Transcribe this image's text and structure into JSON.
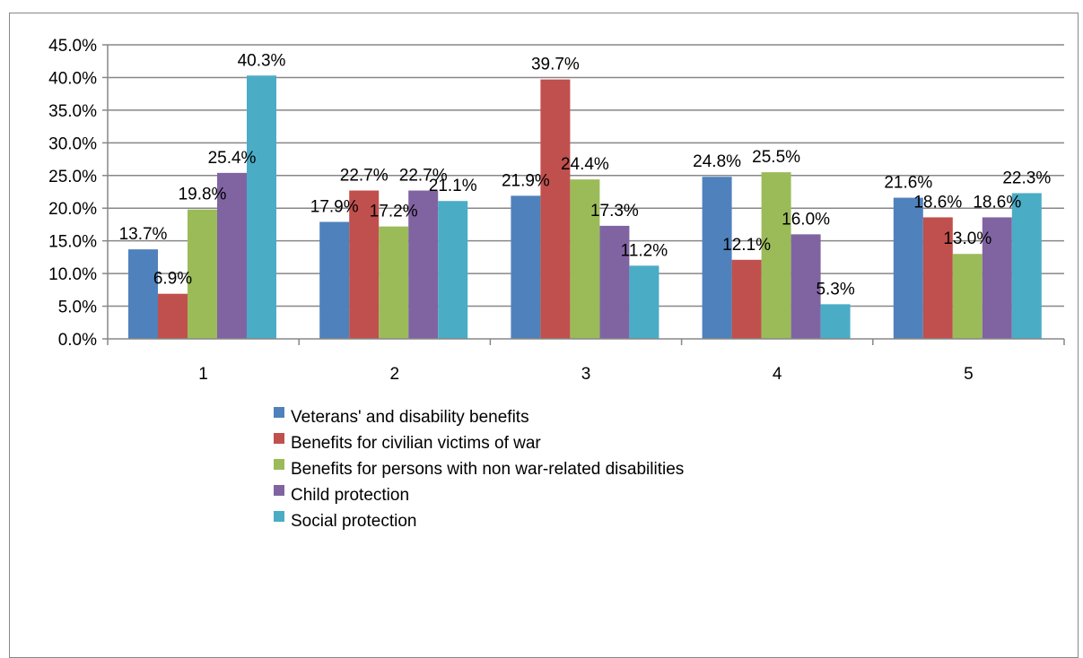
{
  "chart_data": {
    "type": "bar",
    "title": "",
    "xlabel": "",
    "ylabel": "",
    "categories": [
      "1",
      "2",
      "3",
      "4",
      "5"
    ],
    "ylim": [
      0,
      45
    ],
    "y_ticks": [
      "0.0%",
      "5.0%",
      "10.0%",
      "15.0%",
      "20.0%",
      "25.0%",
      "30.0%",
      "35.0%",
      "40.0%",
      "45.0%"
    ],
    "value_format": "percent_1dp",
    "grid": true,
    "legend_position": "bottom",
    "series": [
      {
        "name": "Veterans' and disability benefits",
        "color": "#4f81bd",
        "values": [
          13.7,
          17.9,
          21.9,
          24.8,
          21.6
        ]
      },
      {
        "name": "Benefits for civilian victims of war",
        "color": "#c0504d",
        "values": [
          6.9,
          22.7,
          39.7,
          12.1,
          18.6
        ]
      },
      {
        "name": "Benefits for persons with non war-related disabilities",
        "color": "#9bbb59",
        "values": [
          19.8,
          17.2,
          24.4,
          25.5,
          13.0
        ]
      },
      {
        "name": "Child protection",
        "color": "#8064a2",
        "values": [
          25.4,
          22.7,
          17.3,
          16.0,
          18.6
        ]
      },
      {
        "name": "Social protection",
        "color": "#4bacc6",
        "values": [
          40.3,
          21.1,
          11.2,
          5.3,
          22.3
        ]
      }
    ]
  }
}
